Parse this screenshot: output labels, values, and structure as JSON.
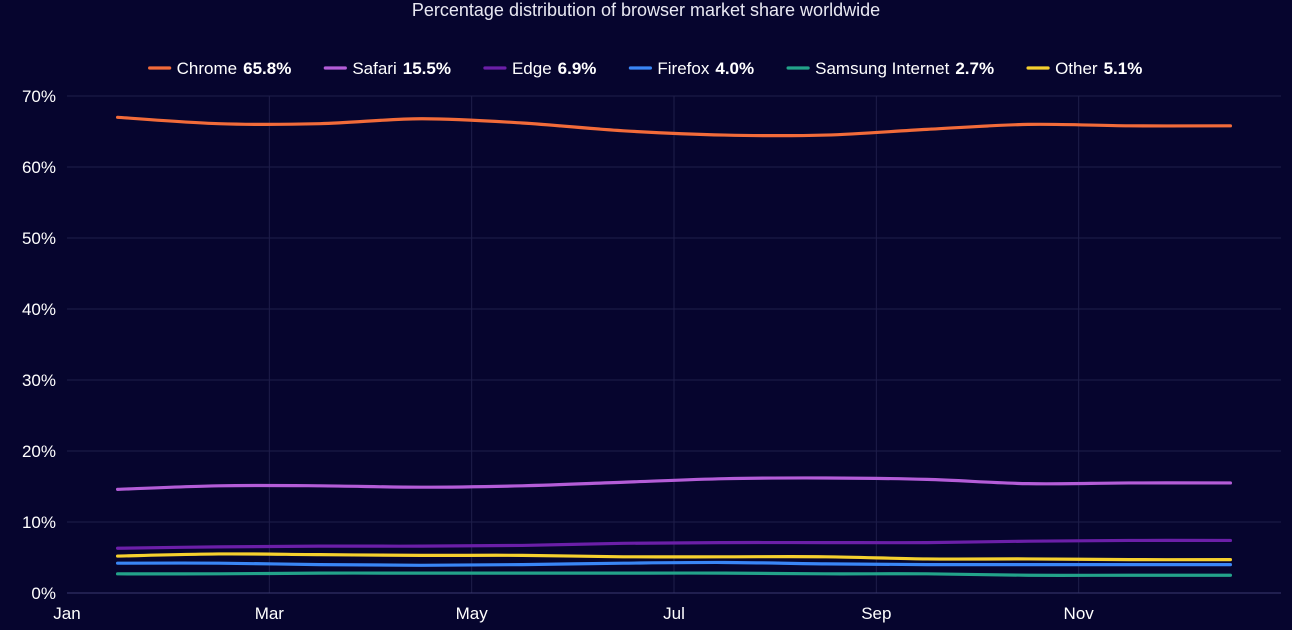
{
  "chart_data": {
    "type": "line",
    "title": "Percentage distribution of browser market share worldwide",
    "xlabel": "",
    "ylabel": "",
    "ylim": [
      0,
      70
    ],
    "y_ticks": [
      0,
      10,
      20,
      30,
      40,
      50,
      60,
      70
    ],
    "y_tick_labels": [
      "0%",
      "10%",
      "20%",
      "30%",
      "40%",
      "50%",
      "60%",
      "70%"
    ],
    "x_range": [
      0,
      12
    ],
    "x_ticks": [
      0,
      2,
      4,
      6,
      8,
      10
    ],
    "x_tick_labels": [
      "Jan",
      "Mar",
      "May",
      "Jul",
      "Sep",
      "Nov"
    ],
    "grid": true,
    "legend_position": "top-center",
    "x": [
      0.5,
      1.5,
      2.5,
      3.5,
      4.5,
      5.5,
      6.5,
      7.5,
      8.5,
      9.5,
      10.5,
      11.5
    ],
    "series": [
      {
        "name": "Chrome",
        "legend_value": "65.8%",
        "color": "#f26b3a",
        "values": [
          67.0,
          66.1,
          66.1,
          66.8,
          66.2,
          65.1,
          64.5,
          64.5,
          65.3,
          66.0,
          65.8,
          65.8
        ]
      },
      {
        "name": "Safari",
        "legend_value": "15.5%",
        "color": "#b45dd8",
        "values": [
          14.6,
          15.1,
          15.1,
          14.9,
          15.1,
          15.6,
          16.1,
          16.2,
          16.0,
          15.4,
          15.5,
          15.5
        ]
      },
      {
        "name": "Edge",
        "legend_value": "6.9%",
        "color": "#6b1fa8",
        "values": [
          6.3,
          6.5,
          6.6,
          6.6,
          6.7,
          7.0,
          7.1,
          7.1,
          7.1,
          7.3,
          7.4,
          7.4
        ]
      },
      {
        "name": "Firefox",
        "legend_value": "4.0%",
        "color": "#3a86f5",
        "values": [
          4.2,
          4.2,
          4.0,
          3.9,
          4.0,
          4.2,
          4.3,
          4.1,
          4.0,
          4.0,
          4.0,
          4.0
        ]
      },
      {
        "name": "Samsung Internet",
        "legend_value": "2.7%",
        "color": "#23a38a",
        "values": [
          2.7,
          2.7,
          2.8,
          2.8,
          2.8,
          2.8,
          2.8,
          2.7,
          2.7,
          2.5,
          2.5,
          2.5
        ]
      },
      {
        "name": "Other",
        "legend_value": "5.1%",
        "color": "#f5d02e",
        "values": [
          5.2,
          5.5,
          5.4,
          5.3,
          5.3,
          5.1,
          5.1,
          5.1,
          4.8,
          4.8,
          4.7,
          4.7
        ]
      }
    ]
  }
}
